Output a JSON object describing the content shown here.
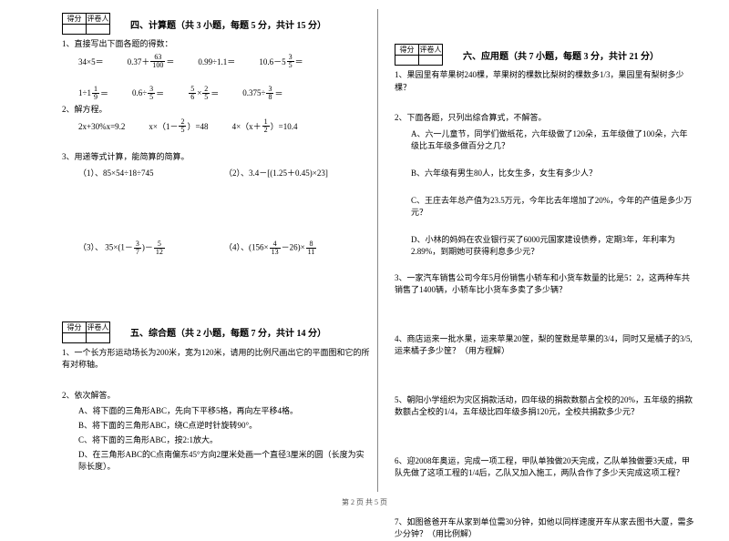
{
  "colors": {
    "text": "#000000",
    "bg": "#ffffff",
    "divider": "#888888"
  },
  "score_labels": {
    "score": "得分",
    "grader": "评卷人"
  },
  "section4": {
    "title": "四、计算题（共 3 小题，每题 5 分，共计 15 分）",
    "q1": "1、直接写出下面各题的得数：",
    "row1": {
      "a": "34×5＝",
      "b_pre": "0.37＋",
      "b_n": "63",
      "b_d": "100",
      "b_suf": "＝",
      "c": "0.99÷1.1＝",
      "d_pre": "10.6－5",
      "d_n": "3",
      "d_d": "5",
      "d_suf": "＝"
    },
    "row2": {
      "a_pre": "1÷1",
      "a_n": "1",
      "a_d": "9",
      "a_suf": "＝",
      "b_pre": "0.6÷",
      "b_n": "3",
      "b_d": "5",
      "b_suf": "＝",
      "c_n1": "5",
      "c_d1": "6",
      "c_mid": "×",
      "c_n2": "2",
      "c_d2": "5",
      "c_suf": "＝",
      "d_pre": "0.375÷",
      "d_n": "3",
      "d_d": "8",
      "d_suf": "＝"
    },
    "q2": "2、解方程。",
    "row3": {
      "a": "2x+30%x=9.2",
      "b_pre": "x×（1－",
      "b_n": "2",
      "b_d": "5",
      "b_suf": "）=48",
      "c_pre": "4×（x＋",
      "c_n": "1",
      "c_d": "2",
      "c_suf": "）=10.4"
    },
    "q3": "3、用递等式计算，能简算的简算。",
    "p1a": "（1）、85×54÷18÷745",
    "p1b": "（2）、3.4－[(1.25＋0.45)×23]",
    "p2a_pre": "（3）、 35×(1－",
    "p2a_n1": "3",
    "p2a_d1": "7",
    "p2a_mid": ")－",
    "p2a_n2": "5",
    "p2a_d2": "12",
    "p2b_pre": "（4）、(156×",
    "p2b_n1": "4",
    "p2b_d1": "13",
    "p2b_mid": "－26)×",
    "p2b_n2": "8",
    "p2b_d2": "11"
  },
  "section5": {
    "title": "五、综合题（共 2 小题，每题 7 分，共计 14 分）",
    "q1": "1、一个长方形运动场长为200米，宽为120米，请用的比例尺画出它的平面图和它的所有对称轴。",
    "q2": "2、依次解答。",
    "a": "A、将下面的三角形ABC，先向下平移5格，再向左平移4格。",
    "b": "B、将下面的三角形ABC，绕C点逆时针旋转90°。",
    "c": "C、将下面的三角形ABC，按2:1放大。",
    "d": "D、在三角形ABC的C点南偏东45°方向2厘米处画一个直径3厘米的圆（长度为实际长度）。"
  },
  "section6": {
    "title": "六、应用题（共 7 小题，每题 3 分，共计 21 分）",
    "q1": "1、果园里有苹果树240棵，苹果树的棵数比梨树的棵数多1/3，果园里有梨树多少棵？",
    "q2": "2、下面各题，只列出综合算式，不解答。",
    "q2a": "A、六一儿童节，同学们做纸花，六年级做了120朵，五年级做了100朵，六年级比五年级多做百分之几？",
    "q2b": "B、六年级有男生80人，比女生多，女生有多少人？",
    "q2c": "C、王庄去年总产值为23.5万元，今年比去年增加了20%，今年的产值是多少万元？",
    "q2d": "D、小林的妈妈在农业银行买了6000元国家建设债券，定期3年，年利率为2.89%，到期她可获得利息多少元？",
    "q3": "3、一家汽车销售公司今年5月份销售小轿车和小货车数量的比是5：2，这两种车共销售了1400辆，小轿车比小货车多卖了多少辆？",
    "q4": "4、商店运来一批水果，运来苹果20筐，梨的筐数是苹果的3/4，同时又是橘子的3/5,运来橘子多少筐？（用方程解）",
    "q5": "5、朝阳小学组织为灾区捐款活动，四年级的捐款数额占全校的20%，五年级的捐款数额占全校的1/4，五年级比四年级多捐120元，全校共捐款多少元？",
    "q6": "6、迎2008年奥运，完成一项工程，甲队单独做20天完成，乙队单独做要3天成，甲队先做了这项工程的1/4后，乙队又加入施工，两队合作了多少天完成这项工程？",
    "q7": "7、如图爸爸开车从家到单位需30分钟，如他以同样速度开车从家去图书大厦，需多少分钟？（用比例解）"
  },
  "footer": "第 2 页 共 5 页"
}
